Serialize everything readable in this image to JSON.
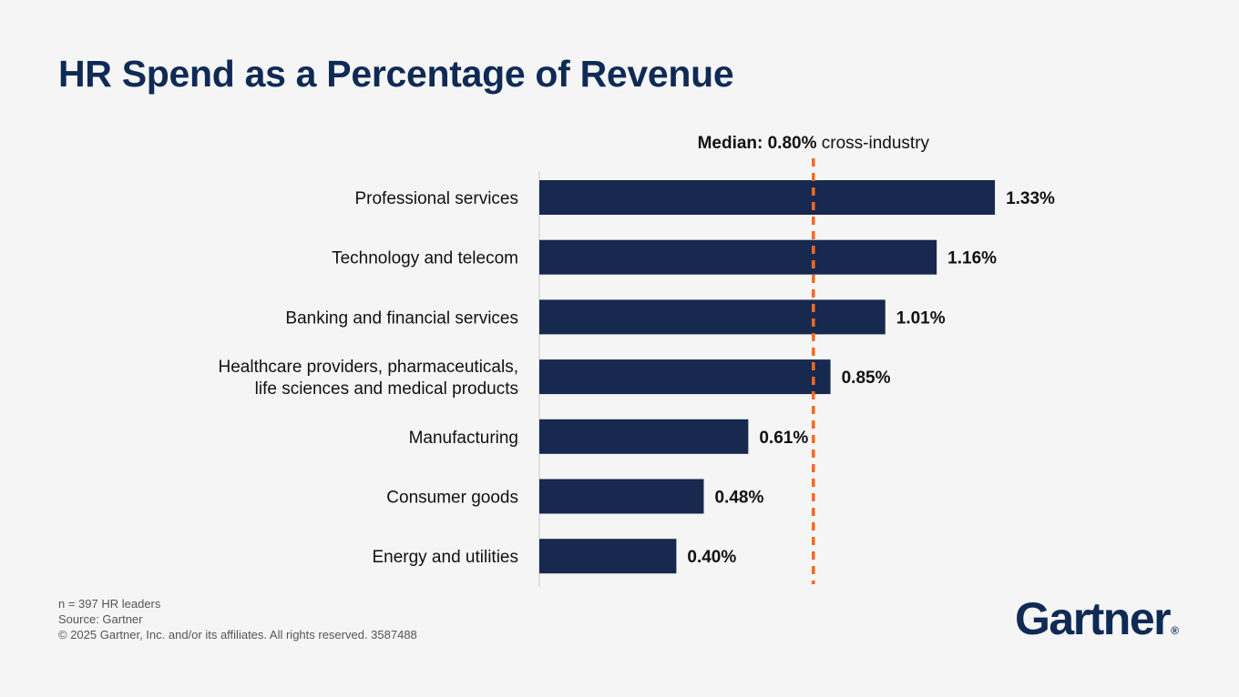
{
  "chart_data": {
    "type": "bar",
    "orientation": "horizontal",
    "title": "HR Spend as a Percentage of Revenue",
    "categories": [
      [
        "Professional services"
      ],
      [
        "Technology and telecom"
      ],
      [
        "Banking and financial services"
      ],
      [
        "Healthcare providers, pharmaceuticals,",
        "life sciences and medical products"
      ],
      [
        "Manufacturing"
      ],
      [
        "Consumer goods"
      ],
      [
        "Energy and utilities"
      ]
    ],
    "values": [
      1.33,
      1.16,
      1.01,
      0.85,
      0.61,
      0.48,
      0.4
    ],
    "value_labels": [
      "1.33%",
      "1.16%",
      "1.01%",
      "0.85%",
      "0.61%",
      "0.48%",
      "0.40%"
    ],
    "unit": "%",
    "xlim": [
      0,
      1.4
    ],
    "grid": false,
    "legend": "none",
    "reference_line": {
      "value": 0.8,
      "label_bold": "Median: 0.80%",
      "label_rest": "cross-industry",
      "color": "#f26a21",
      "style": "dashed"
    },
    "colors": {
      "bar": "#17294f",
      "axis": "#cccccc"
    }
  },
  "footnotes": {
    "sample": "n = 397 HR leaders",
    "source": "Source: Gartner",
    "copyright": "© 2025 Gartner, Inc. and/or its affiliates. All rights reserved. 3587488"
  },
  "brand": {
    "logo_text": "Gartner",
    "logo_mark": "®",
    "color": "#0f2a55"
  }
}
